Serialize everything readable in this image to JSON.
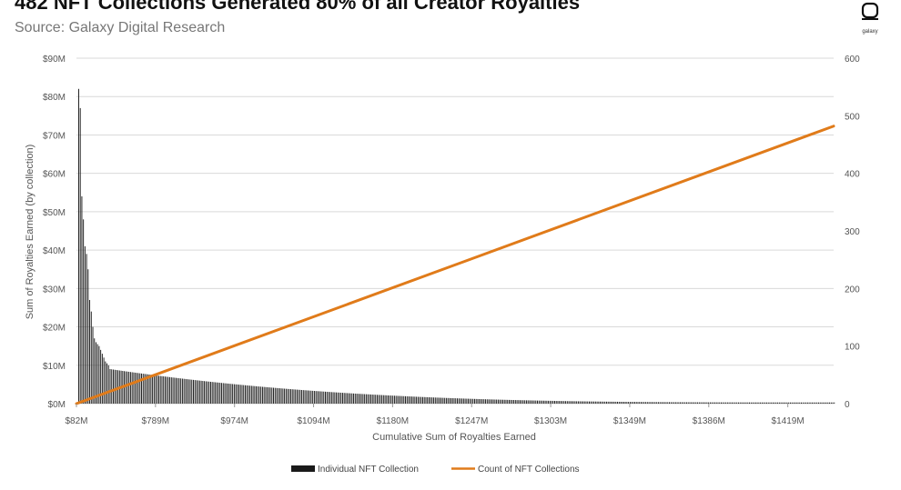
{
  "header": {
    "title": "482 NFT Collections Generated 80% of all Creator Royalties",
    "subtitle": "Source: Galaxy Digital Research",
    "brand": "galaxy"
  },
  "colors": {
    "bars": "#1a1a1a",
    "line": "#e07b1a",
    "grid": "#d9d9d9"
  },
  "chart_data": {
    "type": "bar+line",
    "xlabel": "Cumulative Sum of Royalties Earned",
    "ylabel": "Sum of Royalties Earned (by collection)",
    "y_left_ticks": [
      "$0M",
      "$10M",
      "$20M",
      "$30M",
      "$40M",
      "$50M",
      "$60M",
      "$70M",
      "$80M",
      "$90M"
    ],
    "y_left_range": [
      0,
      90
    ],
    "y_right_ticks": [
      "0",
      "100",
      "200",
      "300",
      "400",
      "500",
      "600"
    ],
    "y_right_range": [
      0,
      600
    ],
    "x_ticks": [
      "$82M",
      "$789M",
      "$974M",
      "$1094M",
      "$1180M",
      "$1247M",
      "$1303M",
      "$1349M",
      "$1386M",
      "$1419M"
    ],
    "grid": true,
    "legend_position": "bottom",
    "series": [
      {
        "name": "Individual NFT Collection",
        "type": "bar",
        "axis": "left",
        "count": 482,
        "top_values": [
          82,
          77,
          54,
          48,
          41,
          39,
          35,
          27,
          24,
          20,
          17,
          16,
          15.5,
          15,
          14,
          13,
          12,
          11,
          10.5,
          10
        ],
        "tail_start": 9,
        "tail_end": 0.3
      },
      {
        "name": "Count of NFT Collections",
        "type": "line",
        "axis": "right",
        "values": [
          0,
          482
        ]
      }
    ]
  }
}
